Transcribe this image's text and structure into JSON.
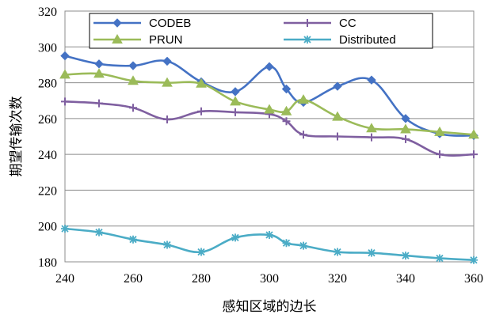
{
  "chart_data": {
    "type": "line",
    "title": "",
    "xlabel": "感知区域的边长",
    "ylabel": "期望传输次数",
    "xlim": [
      240,
      360
    ],
    "ylim": [
      180,
      320
    ],
    "xticks": [
      240,
      260,
      280,
      300,
      320,
      340,
      360
    ],
    "yticks": [
      180,
      200,
      220,
      240,
      260,
      280,
      300,
      320
    ],
    "xtick_labels": [
      "240",
      "260",
      "280",
      "300",
      "320",
      "340",
      "360"
    ],
    "ytick_labels": [
      "180",
      "200",
      "220",
      "240",
      "260",
      "280",
      "300",
      "320"
    ],
    "grid": "horizontal",
    "legend_position": "top",
    "series": [
      {
        "name": "CODEB",
        "color": "#4472C4",
        "marker": "diamond",
        "x": [
          240,
          250,
          260,
          270,
          280,
          290,
          300,
          305,
          310,
          320,
          330,
          340,
          350,
          360
        ],
        "y": [
          295,
          290.5,
          289.5,
          292,
          280.5,
          275,
          289,
          276.5,
          269,
          278,
          281.5,
          260,
          251.5,
          250.5
        ]
      },
      {
        "name": "CC",
        "color": "#7F5FA0",
        "marker": "plus",
        "x": [
          240,
          250,
          260,
          270,
          280,
          290,
          300,
          305,
          310,
          320,
          330,
          340,
          350,
          360
        ],
        "y": [
          269.5,
          268.5,
          266,
          259.5,
          264,
          263.5,
          262.5,
          258.5,
          251,
          250,
          249.5,
          248.5,
          240,
          240
        ]
      },
      {
        "name": "PRUN",
        "color": "#9BBB59",
        "marker": "triangle",
        "x": [
          240,
          250,
          260,
          270,
          280,
          290,
          300,
          305,
          310,
          320,
          330,
          340,
          350,
          360
        ],
        "y": [
          284.5,
          285,
          281,
          280,
          279.5,
          269.5,
          265,
          264,
          270.5,
          261,
          254.5,
          254,
          252.5,
          251
        ]
      },
      {
        "name": "Distributed",
        "color": "#4BACC6",
        "marker": "star",
        "x": [
          240,
          250,
          260,
          270,
          280,
          290,
          300,
          305,
          310,
          320,
          330,
          340,
          350,
          360
        ],
        "y": [
          198.5,
          196.5,
          192.5,
          189.5,
          185.5,
          193.5,
          195,
          190.5,
          189,
          185.5,
          185,
          183.5,
          182,
          181
        ]
      }
    ]
  }
}
